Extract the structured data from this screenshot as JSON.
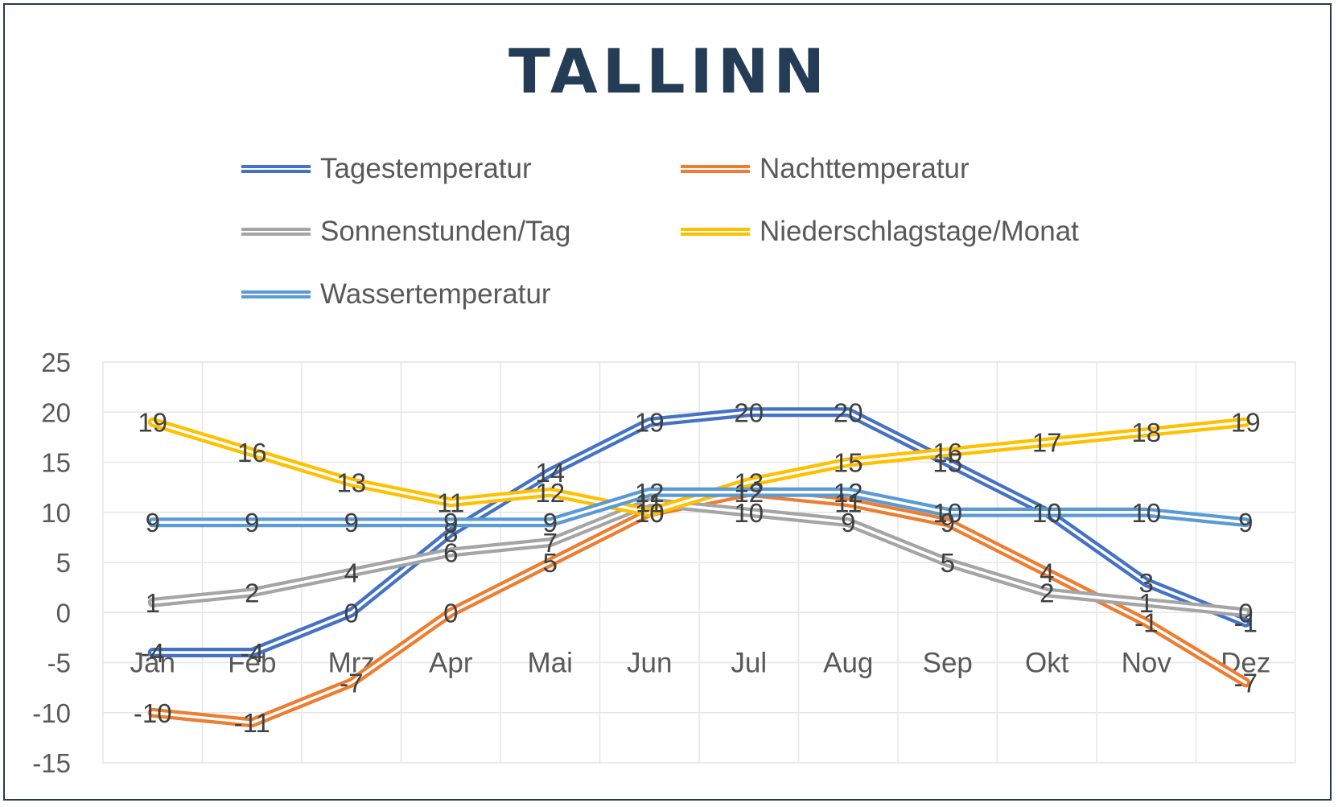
{
  "title": "TALLINN",
  "chart_data": {
    "type": "line",
    "title": "TALLINN",
    "xlabel": "",
    "ylabel": "",
    "categories": [
      "Jan",
      "Feb",
      "Mrz",
      "Apr",
      "Mai",
      "Jun",
      "Jul",
      "Aug",
      "Sep",
      "Okt",
      "Nov",
      "Dez"
    ],
    "ylim": [
      -15,
      25
    ],
    "yticks": [
      "25",
      "20",
      "15",
      "10",
      "5",
      "0",
      "-5",
      "-10",
      "-15"
    ],
    "grid": true,
    "legend_position": "top",
    "series": [
      {
        "name": "Tagestemperatur",
        "color": "#4472c4",
        "values": [
          -4,
          -4,
          0,
          8,
          14,
          19,
          20,
          20,
          15,
          10,
          3,
          -1
        ]
      },
      {
        "name": "Nachttemperatur",
        "color": "#ed7d31",
        "values": [
          -10,
          -11,
          -7,
          0,
          5,
          10,
          12,
          11,
          9,
          4,
          -1,
          -7
        ]
      },
      {
        "name": "Sonnenstunden/Tag",
        "color": "#a5a5a5",
        "values": [
          1,
          2,
          4,
          6,
          7,
          11,
          10,
          9,
          5,
          2,
          1,
          0
        ]
      },
      {
        "name": "Niederschlagstage/Monat",
        "color": "#ffc000",
        "values": [
          19,
          16,
          13,
          11,
          12,
          10,
          13,
          15,
          16,
          17,
          18,
          19
        ]
      },
      {
        "name": "Wassertemperatur",
        "color": "#5b9bd5",
        "values": [
          9,
          9,
          9,
          9,
          9,
          12,
          12,
          12,
          10,
          10,
          10,
          9
        ]
      }
    ]
  }
}
